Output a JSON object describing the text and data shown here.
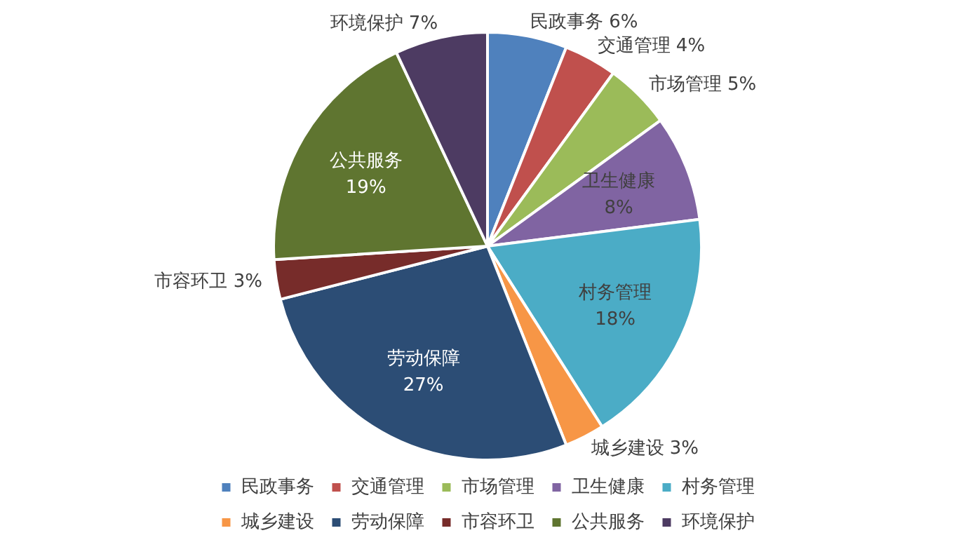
{
  "chart_data": {
    "type": "pie",
    "categories": [
      "民政事务",
      "交通管理",
      "市场管理",
      "卫生健康",
      "村务管理",
      "城乡建设",
      "劳动保障",
      "市容环卫",
      "公共服务",
      "环境保护"
    ],
    "values": [
      6,
      4,
      5,
      8,
      18,
      3,
      27,
      3,
      19,
      7
    ],
    "value_labels": [
      "6%",
      "4%",
      "5%",
      "8%",
      "18%",
      "3%",
      "27%",
      "3%",
      "19%",
      "7%"
    ],
    "colors": [
      "#4f81bd",
      "#c0504d",
      "#9bbb59",
      "#8064a2",
      "#4bacc6",
      "#f79646",
      "#2c4d75",
      "#772c2a",
      "#5f7530",
      "#4d3b62"
    ],
    "legend": "bottom"
  }
}
